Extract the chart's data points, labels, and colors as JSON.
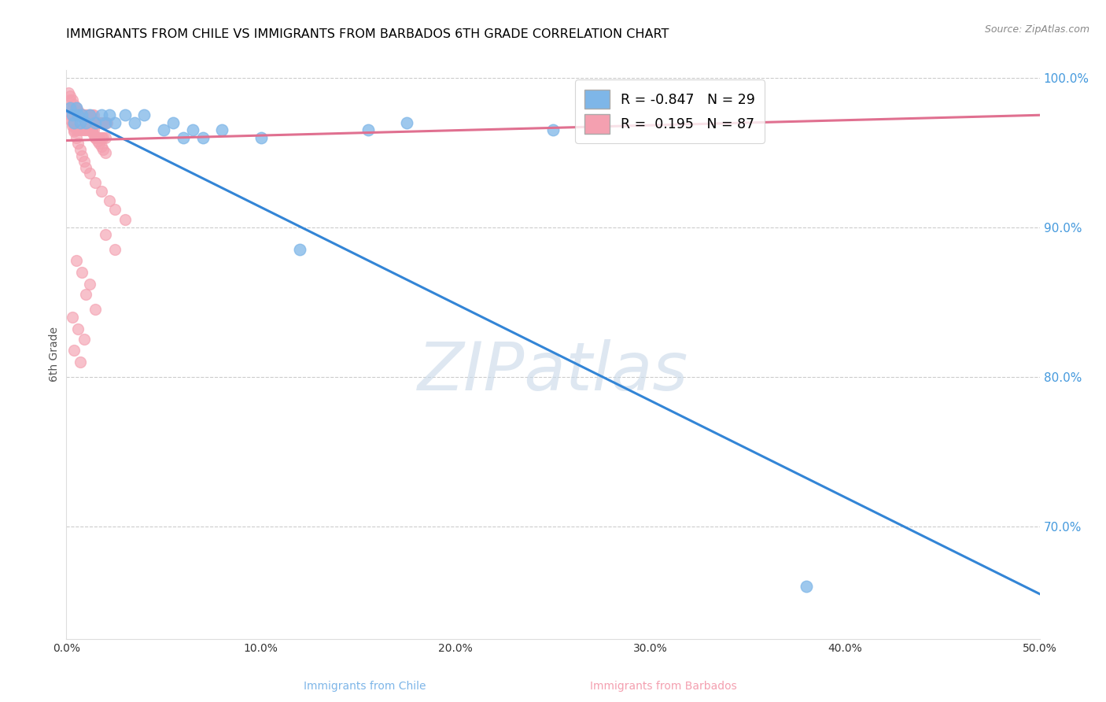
{
  "title": "IMMIGRANTS FROM CHILE VS IMMIGRANTS FROM BARBADOS 6TH GRADE CORRELATION CHART",
  "source": "Source: ZipAtlas.com",
  "ylabel_left": "6th Grade",
  "r_chile": -0.847,
  "n_chile": 29,
  "r_barbados": 0.195,
  "n_barbados": 87,
  "xmin": 0.0,
  "xmax": 0.5,
  "ymin": 0.625,
  "ymax": 1.005,
  "yticks_right": [
    1.0,
    0.9,
    0.8,
    0.7
  ],
  "xticks": [
    0.0,
    0.1,
    0.2,
    0.3,
    0.4,
    0.5
  ],
  "chile_color": "#7EB6E8",
  "barbados_color": "#F4A0B0",
  "chile_line_color": "#3385D6",
  "barbados_line_color": "#E07090",
  "grid_color": "#CCCCCC",
  "watermark": "ZIPatlas",
  "watermark_color": "#C8D8E8",
  "chile_line_x0": 0.0,
  "chile_line_y0": 0.978,
  "chile_line_x1": 0.5,
  "chile_line_y1": 0.655,
  "barbados_line_x0": 0.0,
  "barbados_line_y0": 0.958,
  "barbados_line_x1": 0.5,
  "barbados_line_y1": 0.975,
  "chile_scatter_x": [
    0.002,
    0.003,
    0.004,
    0.005,
    0.006,
    0.007,
    0.008,
    0.01,
    0.012,
    0.015,
    0.018,
    0.02,
    0.022,
    0.025,
    0.03,
    0.035,
    0.04,
    0.05,
    0.055,
    0.06,
    0.065,
    0.07,
    0.08,
    0.1,
    0.12,
    0.155,
    0.175,
    0.25,
    0.38
  ],
  "chile_scatter_y": [
    0.98,
    0.975,
    0.97,
    0.98,
    0.975,
    0.97,
    0.975,
    0.97,
    0.975,
    0.97,
    0.975,
    0.97,
    0.975,
    0.97,
    0.975,
    0.97,
    0.975,
    0.965,
    0.97,
    0.96,
    0.965,
    0.96,
    0.965,
    0.96,
    0.885,
    0.965,
    0.97,
    0.965,
    0.66
  ],
  "barbados_scatter_x": [
    0.001,
    0.002,
    0.002,
    0.003,
    0.003,
    0.004,
    0.004,
    0.005,
    0.005,
    0.006,
    0.006,
    0.007,
    0.007,
    0.008,
    0.008,
    0.009,
    0.009,
    0.01,
    0.01,
    0.011,
    0.011,
    0.012,
    0.012,
    0.013,
    0.013,
    0.014,
    0.014,
    0.015,
    0.015,
    0.016,
    0.016,
    0.017,
    0.017,
    0.018,
    0.018,
    0.019,
    0.019,
    0.02,
    0.02,
    0.021,
    0.001,
    0.002,
    0.003,
    0.004,
    0.005,
    0.006,
    0.007,
    0.008,
    0.009,
    0.01,
    0.011,
    0.012,
    0.013,
    0.014,
    0.015,
    0.016,
    0.017,
    0.018,
    0.019,
    0.02,
    0.002,
    0.003,
    0.004,
    0.005,
    0.006,
    0.007,
    0.008,
    0.009,
    0.01,
    0.012,
    0.015,
    0.018,
    0.022,
    0.025,
    0.03,
    0.02,
    0.025,
    0.005,
    0.008,
    0.012,
    0.01,
    0.015,
    0.003,
    0.006,
    0.009,
    0.004,
    0.007
  ],
  "barbados_scatter_y": [
    0.98,
    0.985,
    0.975,
    0.98,
    0.97,
    0.975,
    0.965,
    0.975,
    0.965,
    0.975,
    0.965,
    0.975,
    0.965,
    0.975,
    0.965,
    0.975,
    0.965,
    0.975,
    0.965,
    0.975,
    0.965,
    0.975,
    0.965,
    0.975,
    0.965,
    0.975,
    0.965,
    0.97,
    0.96,
    0.97,
    0.96,
    0.97,
    0.96,
    0.97,
    0.96,
    0.97,
    0.96,
    0.97,
    0.96,
    0.97,
    0.99,
    0.988,
    0.985,
    0.982,
    0.98,
    0.978,
    0.976,
    0.974,
    0.972,
    0.97,
    0.968,
    0.966,
    0.964,
    0.962,
    0.96,
    0.958,
    0.956,
    0.954,
    0.952,
    0.95,
    0.972,
    0.968,
    0.964,
    0.96,
    0.956,
    0.952,
    0.948,
    0.944,
    0.94,
    0.936,
    0.93,
    0.924,
    0.918,
    0.912,
    0.905,
    0.895,
    0.885,
    0.878,
    0.87,
    0.862,
    0.855,
    0.845,
    0.84,
    0.832,
    0.825,
    0.818,
    0.81
  ]
}
